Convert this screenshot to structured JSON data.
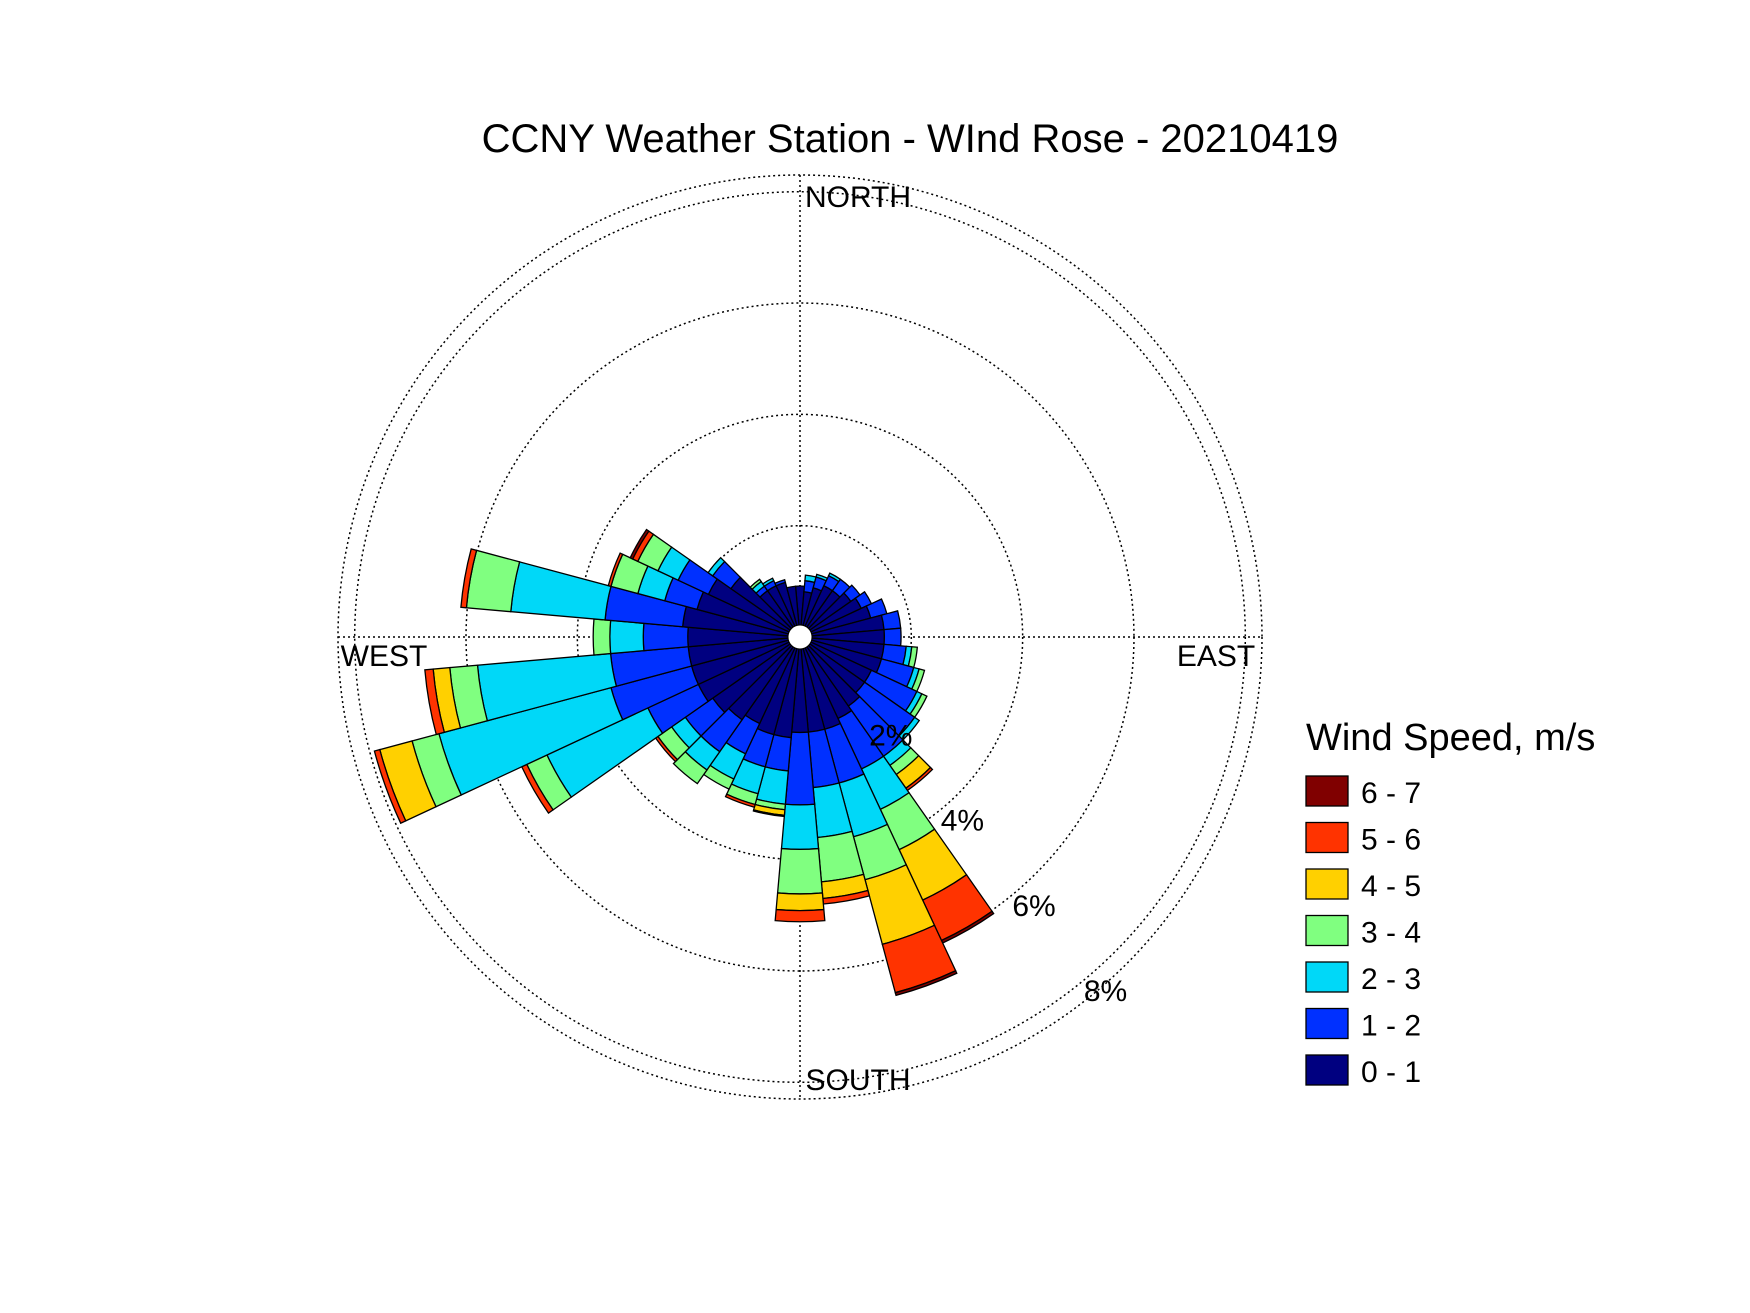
{
  "chart_data": {
    "type": "wind-rose",
    "title": "CCNY Weather Station - WInd Rose - 20210419",
    "direction_labels": {
      "north": "NORTH",
      "east": "EAST",
      "south": "SOUTH",
      "west": "WEST"
    },
    "radial_ticks": [
      "2%",
      "4%",
      "6%",
      "8%"
    ],
    "radial_tick_values": [
      2,
      4,
      6,
      8
    ],
    "r_max": 8.3,
    "grid": true,
    "legend": {
      "title": "Wind Speed, m/s",
      "placement": "right",
      "entries": [
        {
          "label": "6 - 7",
          "color": "#800000"
        },
        {
          "label": "5 - 6",
          "color": "#ff3300"
        },
        {
          "label": "4 - 5",
          "color": "#ffd000"
        },
        {
          "label": "3 - 4",
          "color": "#80ff80"
        },
        {
          "label": "2 - 3",
          "color": "#00d8f8"
        },
        {
          "label": "1 - 2",
          "color": "#0030ff"
        },
        {
          "label": "0 - 1",
          "color": "#000080"
        }
      ]
    },
    "speed_bins": [
      "0 - 1",
      "1 - 2",
      "2 - 3",
      "3 - 4",
      "4 - 5",
      "5 - 6",
      "6 - 7"
    ],
    "bin_colors": [
      "#000080",
      "#0030ff",
      "#00d8f8",
      "#80ff80",
      "#ffd000",
      "#ff3300",
      "#800000"
    ],
    "sector_width_deg": 10,
    "units": "percent frequency",
    "sectors": [
      {
        "dir": 0,
        "values": [
          0.7,
          0,
          0,
          0,
          0,
          0,
          0
        ]
      },
      {
        "dir": 10,
        "values": [
          0.6,
          0.2,
          0.1,
          0,
          0,
          0,
          0
        ]
      },
      {
        "dir": 20,
        "values": [
          0.7,
          0.2,
          0.05,
          0,
          0,
          0,
          0
        ]
      },
      {
        "dir": 30,
        "values": [
          0.8,
          0.2,
          0.05,
          0,
          0,
          0,
          0
        ]
      },
      {
        "dir": 40,
        "values": [
          0.8,
          0.25,
          0,
          0,
          0,
          0,
          0
        ]
      },
      {
        "dir": 50,
        "values": [
          0.9,
          0.2,
          0,
          0,
          0,
          0,
          0
        ]
      },
      {
        "dir": 60,
        "values": [
          1.0,
          0.2,
          0,
          0,
          0,
          0,
          0
        ]
      },
      {
        "dir": 70,
        "values": [
          1.1,
          0.3,
          0,
          0,
          0,
          0,
          0
        ]
      },
      {
        "dir": 80,
        "values": [
          1.3,
          0.3,
          0,
          0,
          0,
          0,
          0
        ]
      },
      {
        "dir": 90,
        "values": [
          1.3,
          0.3,
          0,
          0,
          0,
          0,
          0
        ]
      },
      {
        "dir": 100,
        "values": [
          1.3,
          0.4,
          0.1,
          0.1,
          0,
          0,
          0
        ]
      },
      {
        "dir": 110,
        "values": [
          1.3,
          0.6,
          0.1,
          0.1,
          0,
          0,
          0
        ]
      },
      {
        "dir": 120,
        "values": [
          1.2,
          0.9,
          0.1,
          0.1,
          0,
          0,
          0
        ]
      },
      {
        "dir": 130,
        "values": [
          1.2,
          1.1,
          0.1,
          0,
          0,
          0,
          0
        ]
      },
      {
        "dir": 140,
        "values": [
          1.3,
          1.1,
          0.2,
          0.2,
          0.3,
          0.05,
          0
        ]
      },
      {
        "dir": 150,
        "values": [
          1.4,
          1.0,
          0.8,
          0.8,
          1.0,
          0.8,
          0.05
        ]
      },
      {
        "dir": 160,
        "values": [
          1.5,
          1.0,
          1.0,
          0.8,
          1.2,
          0.9,
          0.05
        ]
      },
      {
        "dir": 170,
        "values": [
          1.5,
          1.0,
          0.9,
          0.8,
          0.3,
          0.1,
          0
        ]
      },
      {
        "dir": 180,
        "values": [
          1.5,
          1.3,
          0.8,
          0.8,
          0.3,
          0.2,
          0
        ]
      },
      {
        "dir": 190,
        "values": [
          1.6,
          0.6,
          0.6,
          0.1,
          0.1,
          0.02,
          0
        ]
      },
      {
        "dir": 200,
        "values": [
          1.6,
          0.6,
          0.5,
          0.2,
          0,
          0.05,
          0
        ]
      },
      {
        "dir": 210,
        "values": [
          1.5,
          0.6,
          0.5,
          0.2,
          0,
          0,
          0
        ]
      },
      {
        "dir": 220,
        "values": [
          1.6,
          0.7,
          0.4,
          0.3,
          0,
          0,
          0
        ]
      },
      {
        "dir": 230,
        "values": [
          1.7,
          0.6,
          0.3,
          0.3,
          0,
          0.05,
          0
        ]
      },
      {
        "dir": 240,
        "values": [
          1.8,
          1.0,
          2.0,
          0.4,
          0,
          0.1,
          0
        ]
      },
      {
        "dir": 250,
        "values": [
          1.8,
          1.5,
          3.2,
          0.5,
          0.6,
          0.1,
          0
        ]
      },
      {
        "dir": 260,
        "values": [
          1.8,
          1.4,
          2.4,
          0.5,
          0.3,
          0.15,
          0
        ]
      },
      {
        "dir": 270,
        "values": [
          1.8,
          0.8,
          0.6,
          0.3,
          0,
          0,
          0
        ]
      },
      {
        "dir": 280,
        "values": [
          1.9,
          1.4,
          1.7,
          0.8,
          0,
          0.1,
          0
        ]
      },
      {
        "dir": 290,
        "values": [
          1.7,
          0.6,
          0.5,
          0.5,
          0,
          0.05,
          0
        ]
      },
      {
        "dir": 300,
        "values": [
          1.6,
          0.6,
          0.4,
          0.4,
          0,
          0.1,
          0.05
        ]
      },
      {
        "dir": 310,
        "values": [
          1.3,
          0.4,
          0.1,
          0,
          0,
          0,
          0
        ]
      },
      {
        "dir": 320,
        "values": [
          0.8,
          0.1,
          0.1,
          0.05,
          0,
          0,
          0
        ]
      },
      {
        "dir": 330,
        "values": [
          0.8,
          0.1,
          0.05,
          0,
          0,
          0,
          0
        ]
      },
      {
        "dir": 340,
        "values": [
          0.8,
          0.05,
          0,
          0,
          0,
          0,
          0
        ]
      },
      {
        "dir": 350,
        "values": [
          0.7,
          0,
          0,
          0,
          0,
          0,
          0
        ]
      }
    ]
  }
}
